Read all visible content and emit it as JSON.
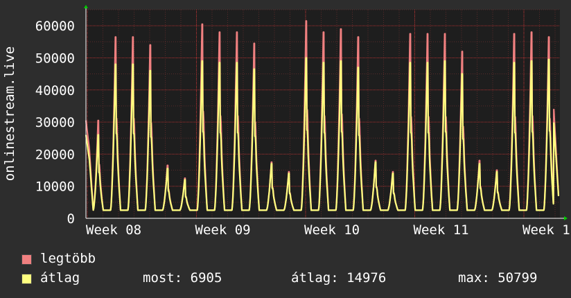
{
  "chart_data": {
    "type": "line",
    "ylabel": "onlinestream.live",
    "ylim": [
      0,
      65000
    ],
    "yticks": [
      0,
      10000,
      20000,
      30000,
      40000,
      50000,
      60000
    ],
    "x_tick_labels": [
      "Week 08",
      "Week 09",
      "Week 10",
      "Week 11",
      "Week 1"
    ],
    "grid": true,
    "series": [
      {
        "name": "legtöbb",
        "color": "#f08080",
        "daily_peaks": [
          30500,
          56500,
          56500,
          54000,
          16500,
          12500,
          60500,
          58000,
          58000,
          54500,
          17500,
          14500,
          61500,
          58000,
          59000,
          56500,
          18000,
          14500,
          57500,
          57500,
          57500,
          52000,
          18000,
          15000,
          57500,
          58000,
          56500
        ]
      },
      {
        "name": "átlag",
        "color": "#ffff80",
        "daily_peaks": [
          26000,
          48000,
          48000,
          46000,
          15500,
          12000,
          49000,
          48500,
          48500,
          46500,
          17000,
          14000,
          50000,
          48500,
          49000,
          47000,
          17500,
          14000,
          48500,
          48500,
          49000,
          45000,
          17000,
          14500,
          48500,
          49000,
          49500
        ]
      }
    ],
    "daily_min": 2500,
    "last_value": 6905
  },
  "legend": {
    "max_label": "legtöbb",
    "avg_label": "átlag",
    "now_text": "most: 6905",
    "avg_text": "átlag: 14976",
    "max_text": "max: 50799"
  },
  "colors": {
    "background": "#2d2d2d",
    "plot_bg": "#1e1e1e",
    "grid": "#b03030",
    "axis_arrow": "#00cc00"
  }
}
